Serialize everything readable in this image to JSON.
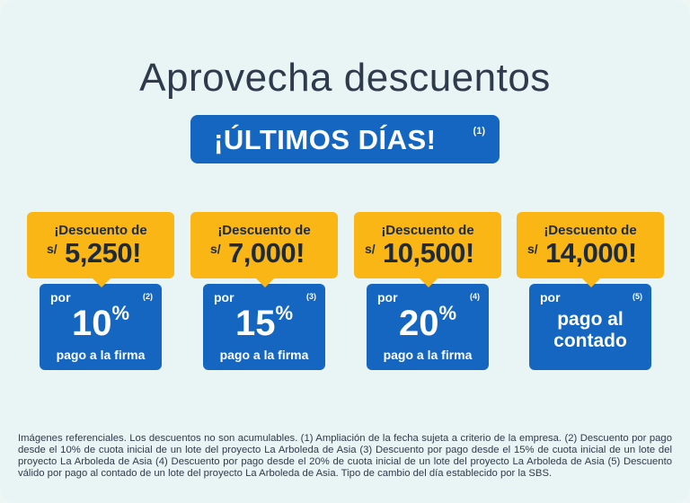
{
  "title": "Aprovecha descuentos",
  "banner": {
    "text": "¡ÚLTIMOS DÍAS!",
    "note": "(1)"
  },
  "offers": [
    {
      "heading": "¡Descuento de",
      "currency": "s/",
      "amount": "5,250!",
      "por": "por",
      "ref": "(2)",
      "percent": "10",
      "percent_sign": "%",
      "sub": "pago a la firma"
    },
    {
      "heading": "¡Descuento de",
      "currency": "s/",
      "amount": "7,000!",
      "por": "por",
      "ref": "(3)",
      "percent": "15",
      "percent_sign": "%",
      "sub": "pago a la firma"
    },
    {
      "heading": "¡Descuento de",
      "currency": "s/",
      "amount": "10,500!",
      "por": "por",
      "ref": "(4)",
      "percent": "20",
      "percent_sign": "%",
      "sub": "pago a la firma"
    },
    {
      "heading": "¡Descuento de",
      "currency": "s/",
      "amount": "14,000!",
      "por": "por",
      "ref": "(5)",
      "line1": "pago al",
      "line2": "contado"
    }
  ],
  "footnote": "Imágenes referenciales. Los descuentos no son acumulables. (1) Ampliación de la fecha sujeta a criterio de la empresa. (2) Descuento por pago desde el 10% de cuota inicial de un lote del proyecto La Arboleda de Asia (3) Descuento por pago desde el 15% de cuota inicial de un lote del proyecto La Arboleda de Asia (4) Descuento por pago desde el 20% de cuota inicial de un lote del proyecto La Arboleda de Asia (5) Descuento válido por pago al contado de un lote del proyecto La Arboleda de Asia. Tipo de cambio del día establecido por la SBS.",
  "colors": {
    "background": "#e9f4f4",
    "blue": "#1466c1",
    "yellow": "#f9b614",
    "text": "#2f3a4c"
  }
}
